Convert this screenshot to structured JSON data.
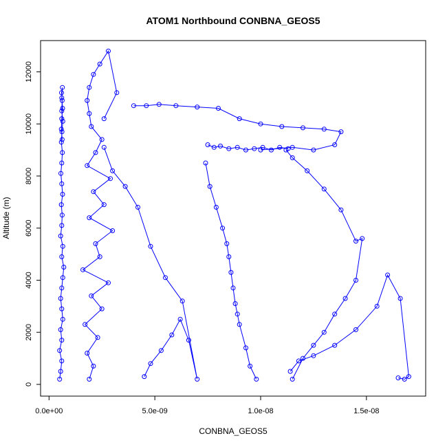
{
  "chart_data": {
    "type": "scatter",
    "title": "ATOM1 Northbound CONBNA_GEOS5",
    "xlabel": "CONBNA_GEOS5",
    "ylabel": "Altitude (m)",
    "xlim": [
      -4e-10,
      1.78e-08
    ],
    "ylim": [
      -450,
      13200
    ],
    "xticks": [
      0,
      5e-09,
      1e-08,
      1.5e-08
    ],
    "xtick_labels": [
      "0.0e+00",
      "5.0e-09",
      "1.0e-08",
      "1.5e-08"
    ],
    "yticks": [
      0,
      2000,
      4000,
      6000,
      8000,
      10000,
      12000
    ],
    "ytick_labels": [
      "0",
      "2000",
      "4000",
      "6000",
      "8000",
      "10000",
      "12000"
    ],
    "grid": false,
    "color": "#0000ff",
    "marker": "open-circle",
    "series": [
      {
        "name": "",
        "x": [
          5e-10,
          5.5e-10,
          6e-10,
          5e-10,
          6e-10,
          5.5e-10,
          6.5e-10,
          6e-10,
          5.5e-10,
          6e-10,
          6.5e-10,
          7e-10,
          6e-10,
          6.5e-10,
          5.5e-10,
          6e-10,
          6.2e-10,
          5.8e-10,
          6.4e-10,
          6e-10,
          5.6e-10,
          6e-10,
          6.3e-10,
          5.8e-10,
          6.1e-10,
          6.5e-10,
          6e-10,
          6.2e-10,
          5.9e-10,
          6.3e-10,
          6e-10,
          6.4e-10,
          6e-10,
          5.8e-10,
          6.2e-10
        ],
        "y": [
          200,
          500,
          900,
          1300,
          1700,
          2100,
          2500,
          2900,
          3300,
          3700,
          4100,
          4500,
          4900,
          5300,
          5700,
          6100,
          6500,
          6900,
          7300,
          7700,
          8100,
          8500,
          8900,
          9300,
          9700,
          10100,
          10500,
          10900,
          11200,
          11400,
          11000,
          10600,
          10200,
          9800,
          9400
        ]
      },
      {
        "name": "",
        "x": [
          1.9e-09,
          2.1e-09,
          1.8e-09,
          2.3e-09,
          1.7e-09,
          2.5e-09,
          2e-09,
          2.8e-09,
          1.6e-09,
          2.4e-09,
          2.2e-09,
          3e-09,
          1.9e-09,
          2.6e-09,
          2.1e-09,
          2.9e-09,
          1.8e-09,
          2.2e-09,
          2.5e-09,
          2e-09,
          1.9e-09,
          1.8e-09,
          1.9e-09,
          2.1e-09,
          2.4e-09,
          2.8e-09,
          3.2e-09,
          2.6e-09
        ],
        "y": [
          200,
          700,
          1200,
          1800,
          2300,
          2900,
          3400,
          3900,
          4400,
          4900,
          5400,
          5900,
          6400,
          6900,
          7400,
          7900,
          8400,
          8900,
          9400,
          9900,
          10400,
          10900,
          11400,
          11900,
          12300,
          12800,
          11200,
          10200
        ]
      },
      {
        "name": "",
        "x": [
          4e-09,
          4.6e-09,
          5.2e-09,
          6e-09,
          7e-09,
          8e-09,
          9e-09,
          1e-08,
          1.1e-08,
          1.2e-08,
          1.3e-08,
          1.38e-08,
          1.35e-08,
          1.25e-08,
          1.15e-08,
          1e-08
        ],
        "y": [
          10700,
          10700,
          10750,
          10700,
          10650,
          10600,
          10200,
          10000,
          9900,
          9850,
          9800,
          9700,
          9200,
          9000,
          9100,
          9000
        ]
      },
      {
        "name": "",
        "x": [
          7.5e-09,
          7.8e-09,
          8.1e-09,
          8.5e-09,
          8.9e-09,
          9.3e-09,
          9.7e-09,
          1.01e-08,
          1.05e-08,
          1.09e-08,
          1.13e-08
        ],
        "y": [
          9200,
          9100,
          9150,
          9050,
          9100,
          9000,
          9050,
          9100,
          9000,
          9100,
          9050
        ]
      },
      {
        "name": "",
        "x": [
          7.4e-09,
          7.6e-09,
          7.9e-09,
          8.2e-09,
          8.4e-09,
          8.5e-09,
          8.6e-09,
          8.7e-09,
          8.8e-09,
          8.9e-09,
          9e-09,
          9.3e-09,
          9.5e-09,
          9.8e-09
        ],
        "y": [
          8500,
          7600,
          6800,
          6000,
          5400,
          4900,
          4300,
          3700,
          3100,
          2700,
          2300,
          1400,
          700,
          200
        ]
      },
      {
        "name": "",
        "x": [
          1.15e-08,
          1.2e-08,
          1.25e-08,
          1.3e-08,
          1.35e-08,
          1.4e-08,
          1.45e-08,
          1.48e-08,
          1.45e-08,
          1.38e-08,
          1.3e-08,
          1.22e-08,
          1.15e-08,
          1.12e-08
        ],
        "y": [
          200,
          1000,
          1500,
          2000,
          2700,
          3300,
          4000,
          5600,
          5500,
          6700,
          7500,
          8200,
          8700,
          9000
        ]
      },
      {
        "name": "",
        "x": [
          1.65e-08,
          1.68e-08,
          1.7e-08,
          1.66e-08,
          1.6e-08,
          1.55e-08,
          1.45e-08,
          1.35e-08,
          1.25e-08,
          1.18e-08,
          1.14e-08
        ],
        "y": [
          250,
          200,
          300,
          3300,
          4200,
          3000,
          2100,
          1500,
          1100,
          900,
          500
        ]
      },
      {
        "name": "",
        "x": [
          4.5e-09,
          4.8e-09,
          5.3e-09,
          5.8e-09,
          6.2e-09,
          6.6e-09,
          7e-09,
          6.3e-09,
          5.5e-09,
          4.8e-09,
          4.2e-09,
          3.6e-09,
          3e-09,
          2.6e-09
        ],
        "y": [
          300,
          800,
          1300,
          1900,
          2500,
          1700,
          200,
          3200,
          4100,
          5300,
          6800,
          7600,
          8200,
          9100
        ]
      }
    ]
  }
}
